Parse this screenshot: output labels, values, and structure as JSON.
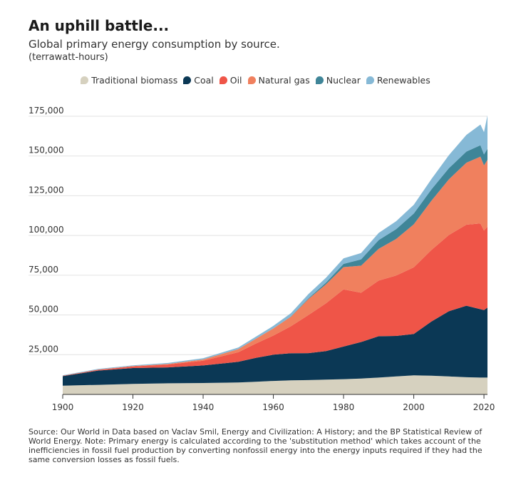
{
  "title": "An uphill battle...",
  "subtitle": "Global primary energy consumption by source.",
  "unit_note": "(terrawatt-hours)",
  "source": "Source: Our World in Data based on Vaclav Smil, Energy and Civilization: A History; and the BP Statistical Review of World Energy. Note: Primary energy is calculated according to the 'substitution method' which takes account of the inefficiencies in fossil fuel production by converting nonfossil energy into the energy inputs required if they had the same conversion losses as fossil fuels.",
  "chart_data": {
    "type": "area",
    "stacked": true,
    "title": "",
    "xlabel": "",
    "ylabel": "",
    "xlim": [
      1900,
      2021
    ],
    "ylim": [
      0,
      175000
    ],
    "x_ticks": [
      1900,
      1920,
      1940,
      1960,
      1980,
      2000,
      2020
    ],
    "x_tick_labels": [
      "1900",
      "1920",
      "1940",
      "1960",
      "1980",
      "2000",
      "2020"
    ],
    "y_ticks": [
      25000,
      50000,
      75000,
      100000,
      125000,
      150000,
      175000
    ],
    "y_tick_labels": [
      "25,000",
      "50,000",
      "75,000",
      "100,000",
      "125,000",
      "150,000",
      "175,000"
    ],
    "grid": true,
    "legend_position": "top-center",
    "x": [
      1900,
      1910,
      1920,
      1930,
      1940,
      1950,
      1955,
      1960,
      1965,
      1970,
      1975,
      1980,
      1985,
      1990,
      1995,
      2000,
      2005,
      2010,
      2015,
      2019,
      2020,
      2021
    ],
    "series": [
      {
        "name": "Traditional biomass",
        "color": "#d6d1bf",
        "values": [
          5500,
          6000,
          6600,
          7000,
          7200,
          7500,
          8000,
          8500,
          8900,
          9000,
          9300,
          9600,
          10000,
          10600,
          11300,
          12000,
          11800,
          11300,
          10800,
          10600,
          10600,
          10600
        ]
      },
      {
        "name": "Coal",
        "color": "#0b3855",
        "values": [
          6000,
          9000,
          10000,
          10000,
          11000,
          13000,
          15000,
          16500,
          17000,
          17000,
          18000,
          20500,
          23000,
          26000,
          25500,
          26000,
          34000,
          41000,
          45000,
          43000,
          42500,
          44000
        ]
      },
      {
        "name": "Oil",
        "color": "#ef5548",
        "values": [
          200,
          500,
          1000,
          1800,
          3000,
          6000,
          9000,
          12000,
          17000,
          24000,
          30000,
          36000,
          31000,
          35000,
          38000,
          42000,
          45000,
          48000,
          51000,
          54000,
          50000,
          51000
        ]
      },
      {
        "name": "Natural gas",
        "color": "#f0805e",
        "values": [
          50,
          100,
          200,
          400,
          800,
          2000,
          3000,
          4500,
          6000,
          10000,
          12000,
          14000,
          17000,
          20000,
          23000,
          27000,
          31000,
          35000,
          39000,
          42000,
          41000,
          42000
        ]
      },
      {
        "name": "Nuclear",
        "color": "#3f8598",
        "values": [
          0,
          0,
          0,
          0,
          0,
          0,
          0,
          0,
          200,
          500,
          1000,
          2000,
          4000,
          5500,
          6200,
          6800,
          7100,
          7000,
          7000,
          7200,
          6900,
          7000
        ]
      },
      {
        "name": "Renewables",
        "color": "#86b9d6",
        "values": [
          300,
          400,
          500,
          600,
          800,
          1000,
          1300,
          1600,
          2000,
          2700,
          3100,
          3500,
          4000,
          4500,
          5000,
          5500,
          6500,
          8200,
          10500,
          13000,
          14000,
          21000
        ]
      }
    ]
  }
}
